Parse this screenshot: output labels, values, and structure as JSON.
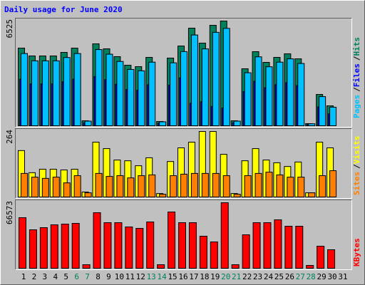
{
  "chart_data": [
    {
      "type": "bar",
      "title": "Daily usage for June 2020",
      "ylim": [
        0,
        6525
      ],
      "legend_separator": "/",
      "series": [
        {
          "name": "Hits",
          "color": "#00805c",
          "values": [
            4838,
            4350,
            4350,
            4350,
            4572,
            4838,
            311,
            5105,
            4794,
            4306,
            3773,
            3684,
            4261,
            266,
            4217,
            4971,
            6081,
            5149,
            6259,
            6525,
            311,
            3551,
            4616,
            3950,
            4261,
            4483,
            4172,
            133,
            1953,
            1243,
            0
          ]
        },
        {
          "name": "Files",
          "color": "#0000ff",
          "values": [
            2903,
            2610,
            2610,
            2610,
            2743,
            2903,
            187,
            3063,
            2876,
            2584,
            2264,
            2210,
            2557,
            160,
            2530,
            2983,
            1400,
            1500,
            1200,
            1100,
            187,
            2131,
            2770,
            2370,
            2557,
            2690,
            2503,
            80,
            1172,
            746,
            0
          ]
        },
        {
          "name": "Pages",
          "color": "#00c0ff",
          "values": [
            4500,
            4045,
            4045,
            4045,
            4252,
            4499,
            289,
            4748,
            4458,
            4005,
            3509,
            3426,
            3963,
            247,
            3922,
            4623,
            5655,
            4789,
            5821,
            6068,
            289,
            3302,
            4293,
            3674,
            3963,
            4169,
            3880,
            124,
            1816,
            1156,
            0
          ]
        }
      ]
    },
    {
      "type": "bar",
      "ylim": [
        0,
        264
      ],
      "legend_separator": "/",
      "series": [
        {
          "name": "Visits",
          "color": "#ffff00",
          "values": [
            187,
            98,
            112,
            112,
            109,
            112,
            20,
            221,
            195,
            149,
            146,
            126,
            158,
            14,
            143,
            198,
            221,
            264,
            264,
            172,
            14,
            146,
            195,
            149,
            138,
            123,
            141,
            17,
            221,
            198,
            0
          ]
        },
        {
          "name": "Sites",
          "color": "#ff8000",
          "values": [
            95,
            80,
            75,
            80,
            57,
            86,
            17,
            95,
            83,
            86,
            77,
            86,
            89,
            11,
            86,
            92,
            95,
            95,
            95,
            86,
            11,
            86,
            95,
            100,
            89,
            80,
            80,
            17,
            86,
            106,
            0
          ]
        }
      ]
    },
    {
      "type": "bar",
      "ylim": [
        0,
        66573
      ],
      "series": [
        {
          "name": "KBytes",
          "color": "#ff0000",
          "values": [
            51377,
            39075,
            41246,
            44140,
            44864,
            45588,
            3618,
            56443,
            46312,
            46312,
            41970,
            40523,
            47036,
            3618,
            57166,
            46312,
            46312,
            32563,
            26774,
            66573,
            3618,
            34010,
            46312,
            46312,
            49206,
            42694,
            42694,
            2894,
            22432,
            18814,
            0
          ]
        }
      ],
      "categories": [
        "1",
        "2",
        "3",
        "4",
        "5",
        "6",
        "7",
        "8",
        "9",
        "10",
        "11",
        "12",
        "13",
        "14",
        "15",
        "16",
        "17",
        "18",
        "19",
        "20",
        "21",
        "22",
        "23",
        "24",
        "25",
        "26",
        "27",
        "28",
        "29",
        "30",
        "31"
      ],
      "label_colors": [
        "#000000",
        "#000000",
        "#000000",
        "#000000",
        "#000000",
        "#00805c",
        "#00805c",
        "#000000",
        "#000000",
        "#000000",
        "#000000",
        "#000000",
        "#00805c",
        "#00805c",
        "#000000",
        "#000000",
        "#000000",
        "#000000",
        "#000000",
        "#00805c",
        "#00805c",
        "#000000",
        "#000000",
        "#000000",
        "#000000",
        "#000000",
        "#00805c",
        "#00805c",
        "#000000",
        "#000000",
        "#000000"
      ]
    }
  ]
}
